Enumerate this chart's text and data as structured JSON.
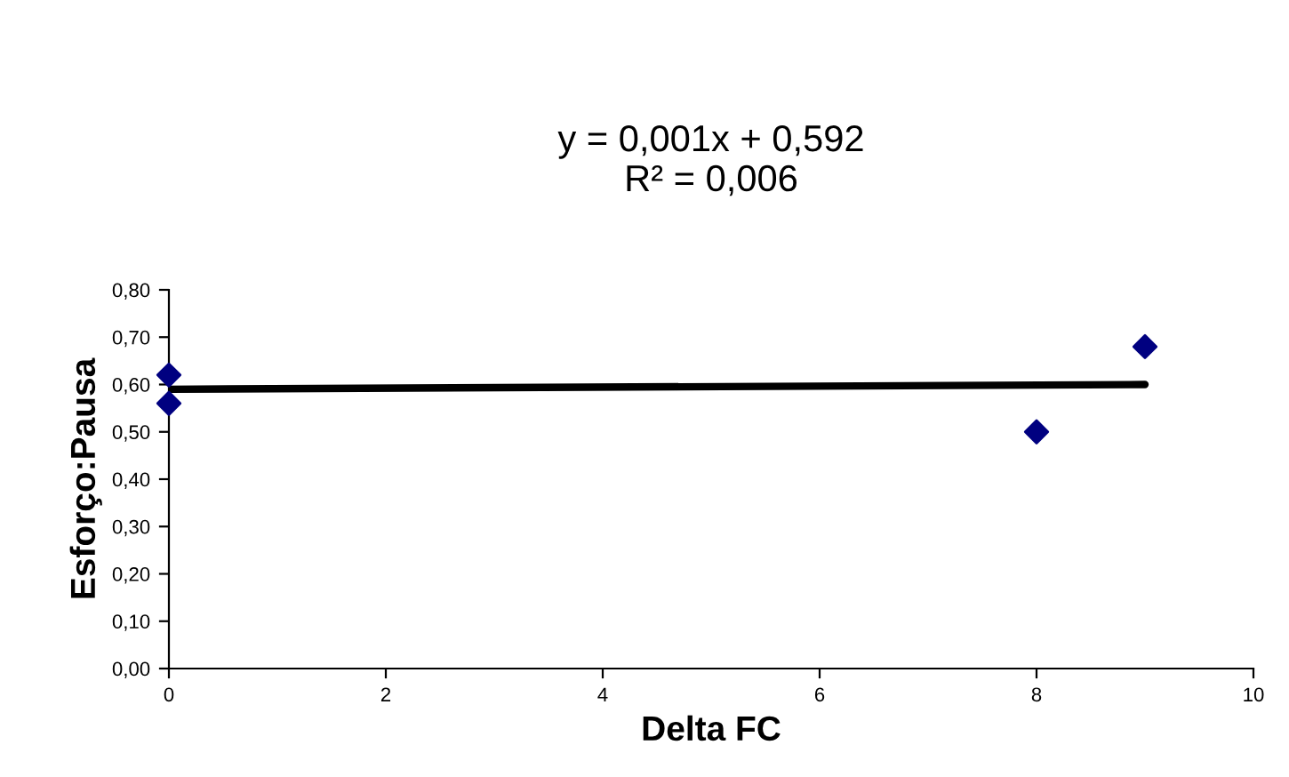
{
  "chart_data": {
    "type": "scatter",
    "title": "y = 0,001x + 0,592\nR² = 0,006",
    "xlabel": "Delta FC",
    "ylabel": "Esforço:Pausa",
    "series": [
      {
        "color": "#000080",
        "x": [
          0,
          0,
          8,
          9
        ],
        "values": [
          0.62,
          0.56,
          0.5,
          0.68
        ],
        "marker": "diamond"
      },
      {
        "type": "line",
        "color": "#000000",
        "x": [
          0,
          9
        ],
        "values": [
          0.59,
          0.6
        ],
        "marker": "none",
        "line_style": "solid"
      }
    ],
    "xlim": [
      0,
      10
    ],
    "xticks": [
      0,
      2,
      4,
      6,
      8,
      10
    ],
    "ylim": [
      0,
      0.8
    ],
    "yticks": [
      {
        "value": 0,
        "label": "0,00"
      },
      {
        "value": 0.1,
        "label": "0,10"
      },
      {
        "value": 0.2,
        "label": "0,20"
      },
      {
        "value": 0.3,
        "label": "0,30"
      },
      {
        "value": 0.4,
        "label": "0,40"
      },
      {
        "value": 0.5,
        "label": "0,50"
      },
      {
        "value": 0.6,
        "label": "0,60"
      },
      {
        "value": 0.7,
        "label": "0,70"
      },
      {
        "value": 0.8,
        "label": "0,80"
      }
    ],
    "grid": false,
    "legend": false
  }
}
